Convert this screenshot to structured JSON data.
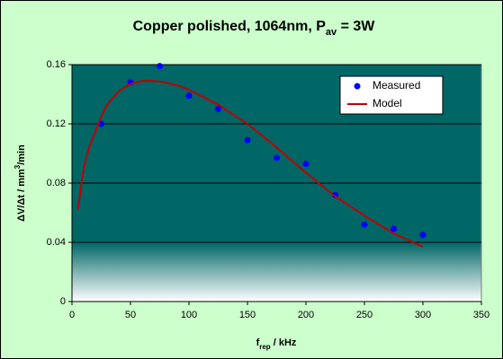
{
  "chart_data": {
    "type": "scatter",
    "title": [
      "Copper polished, 1064nm, P",
      "av",
      " = 3W"
    ],
    "x_label": [
      "f",
      "rep",
      " / kHz"
    ],
    "y_label": [
      "ΔV/Δt / mm",
      "3",
      "/min"
    ],
    "xlim": [
      0,
      350
    ],
    "xticks": [
      0,
      50,
      100,
      150,
      200,
      250,
      300,
      350
    ],
    "ylim": [
      0,
      0.16
    ],
    "yticks": [
      0,
      0.04,
      0.08,
      0.12,
      0.16
    ],
    "grid": true,
    "legend": "upper right",
    "series": [
      {
        "name": "Measured",
        "color": "#0000ff",
        "style": "marker",
        "x": [
          25,
          50,
          75,
          100,
          125,
          150,
          175,
          200,
          225,
          250,
          275,
          300
        ],
        "values": [
          0.12,
          0.148,
          0.159,
          0.139,
          0.13,
          0.109,
          0.097,
          0.093,
          0.072,
          0.052,
          0.049,
          0.045
        ]
      },
      {
        "name": "Model",
        "color": "#c00000",
        "style": "line",
        "x": [
          5,
          10,
          15,
          20,
          25,
          30,
          40,
          50,
          60,
          70,
          80,
          90,
          100,
          125,
          150,
          175,
          200,
          225,
          250,
          275,
          300
        ],
        "values": [
          0.062,
          0.09,
          0.105,
          0.115,
          0.125,
          0.133,
          0.142,
          0.147,
          0.149,
          0.149,
          0.148,
          0.146,
          0.143,
          0.133,
          0.12,
          0.104,
          0.087,
          0.071,
          0.058,
          0.046,
          0.037
        ]
      }
    ]
  }
}
